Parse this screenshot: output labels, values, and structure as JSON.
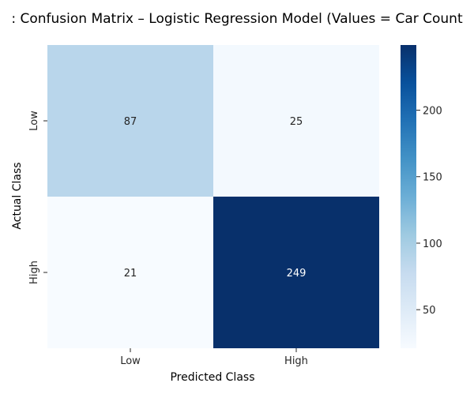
{
  "chart_data": {
    "type": "heatmap",
    "title": ": Confusion Matrix – Logistic Regression Model (Values = Car Count",
    "xlabel": "Predicted Class",
    "ylabel": "Actual Class",
    "x_categories": [
      "Low",
      "High"
    ],
    "y_categories": [
      "Low",
      "High"
    ],
    "values": [
      [
        87,
        25
      ],
      [
        21,
        249
      ]
    ],
    "colormap": "Blues",
    "color_range": [
      21,
      249
    ],
    "colorbar": {
      "ticks": [
        50,
        100,
        150,
        200
      ],
      "tick_labels": [
        "50",
        "100",
        "150",
        "200"
      ]
    },
    "annotation_colors": {
      "light": "#ffffff",
      "dark": "#262626"
    },
    "grid": false
  }
}
